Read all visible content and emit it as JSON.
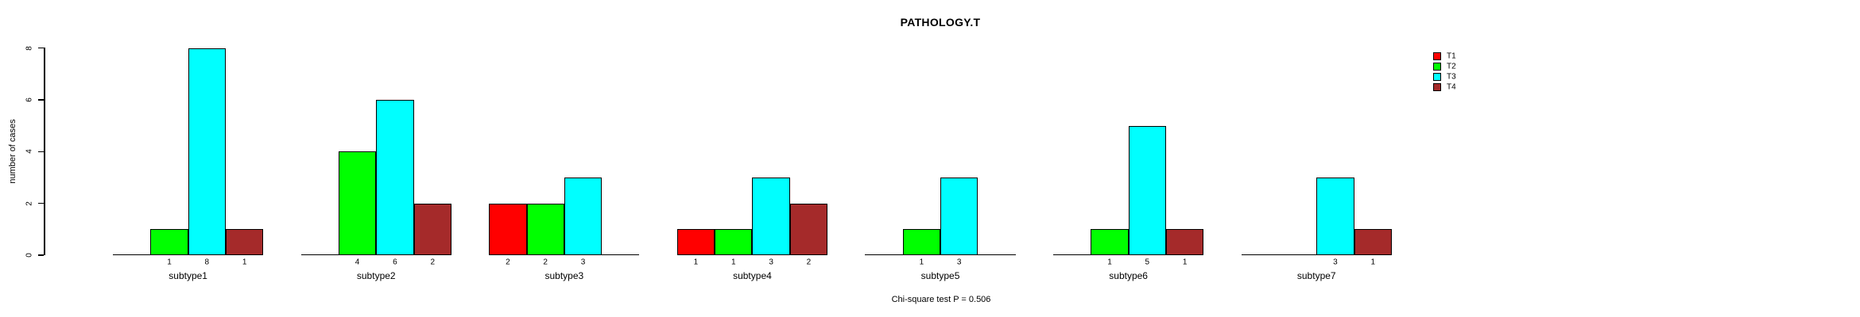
{
  "chart_data": {
    "type": "bar",
    "title": "PATHOLOGY.T",
    "xlabel": "",
    "ylabel": "number of cases",
    "annotation": "Chi-square test P = 0.506",
    "ylim": [
      0,
      8
    ],
    "yticks": [
      0,
      2,
      4,
      6,
      8
    ],
    "grid": false,
    "legend_position": "top-right",
    "categories": [
      "subtype1",
      "subtype2",
      "subtype3",
      "subtype4",
      "subtype5",
      "subtype6",
      "subtype7"
    ],
    "series": [
      {
        "name": "T1",
        "color": "#FF0000",
        "values": [
          0,
          0,
          2,
          1,
          0,
          0,
          0
        ]
      },
      {
        "name": "T2",
        "color": "#00FF00",
        "values": [
          1,
          4,
          2,
          1,
          1,
          1,
          0
        ]
      },
      {
        "name": "T3",
        "color": "#00FFFF",
        "values": [
          8,
          6,
          3,
          3,
          3,
          5,
          3
        ]
      },
      {
        "name": "T4",
        "color": "#A52A2A",
        "values": [
          1,
          2,
          0,
          2,
          0,
          1,
          1
        ]
      }
    ],
    "value_labels": "shown under each non-zero bar"
  }
}
